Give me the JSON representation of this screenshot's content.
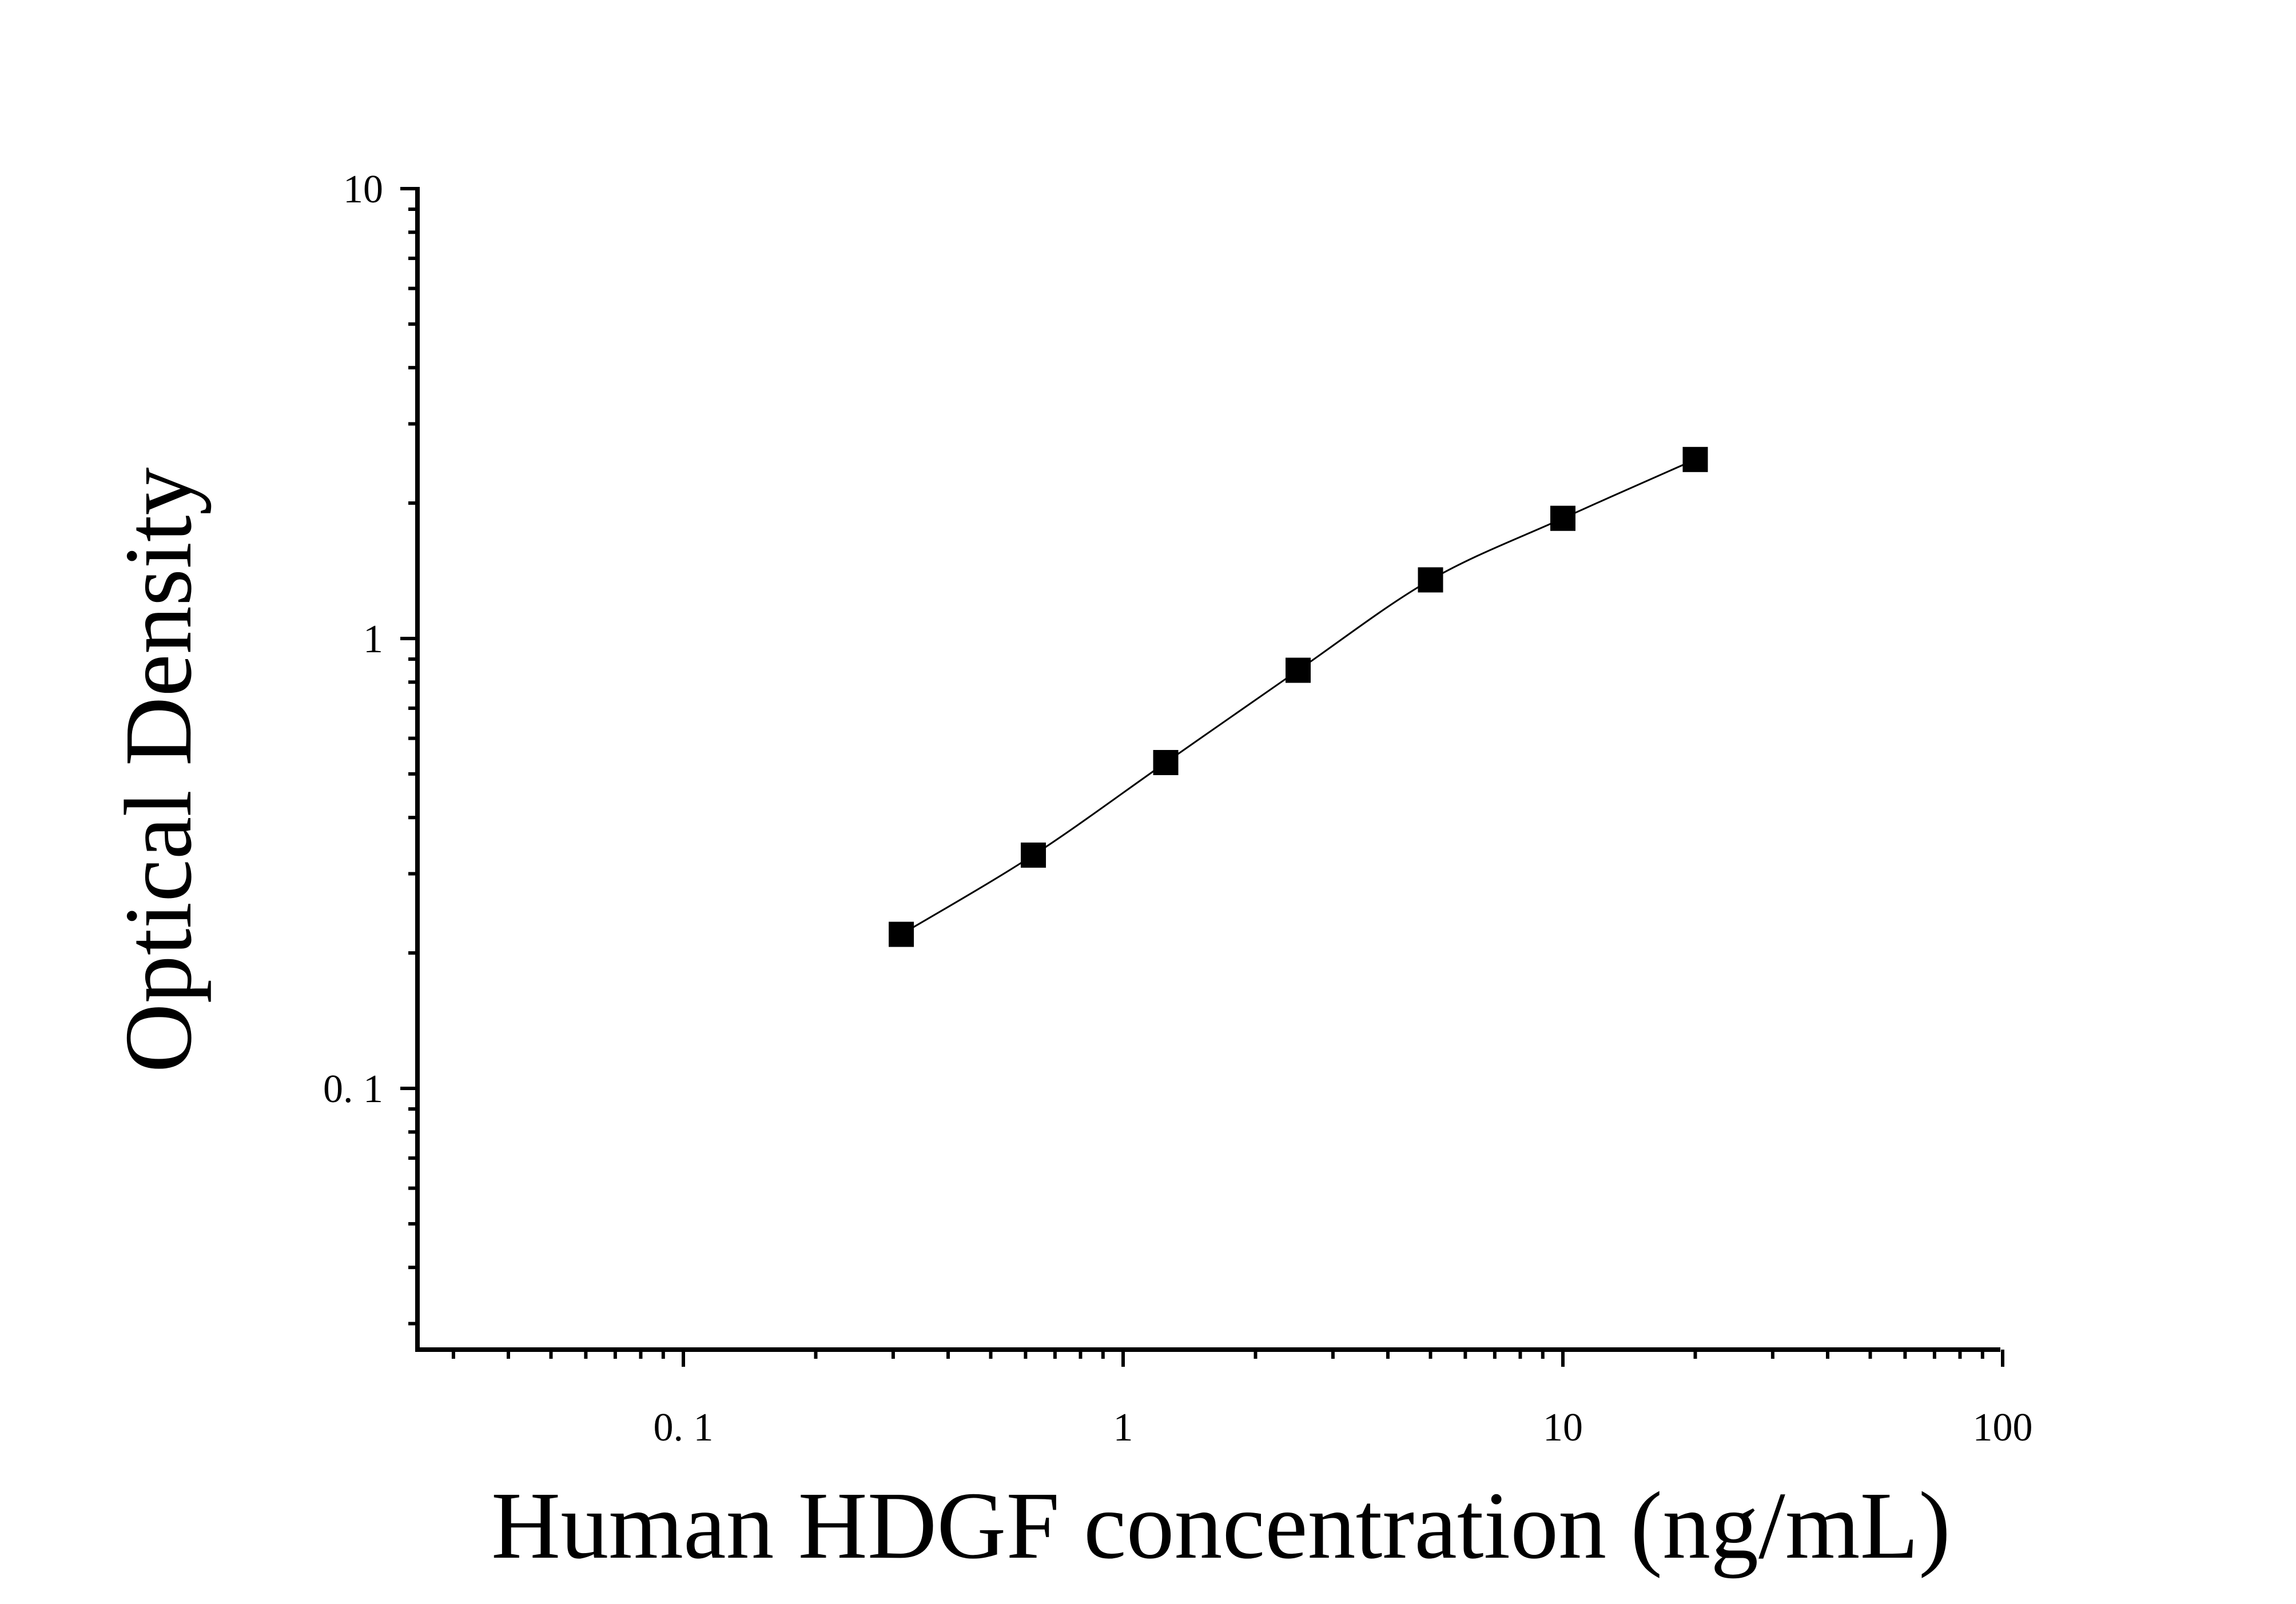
{
  "chart_data": {
    "type": "scatter",
    "xlabel": "Human HDGF concentration (ng/mL)",
    "ylabel": "Optical Density",
    "x_scale": "log",
    "y_scale": "log",
    "xlim": [
      0.025,
      100
    ],
    "ylim": [
      0.025,
      10
    ],
    "x_ticks": [
      0.1,
      1,
      10,
      100
    ],
    "x_tick_labels": [
      "0. 1",
      "1",
      "10",
      "100"
    ],
    "y_ticks": [
      0.1,
      1,
      10
    ],
    "y_tick_labels": [
      "0. 1",
      "1",
      "10"
    ],
    "grid": false,
    "series": [
      {
        "marker": "square",
        "color": "#000000",
        "fit_line": true,
        "points": [
          {
            "x": 0.313,
            "y": 0.22
          },
          {
            "x": 0.625,
            "y": 0.33
          },
          {
            "x": 1.25,
            "y": 0.53
          },
          {
            "x": 2.5,
            "y": 0.85
          },
          {
            "x": 5,
            "y": 1.35
          },
          {
            "x": 10,
            "y": 1.85
          },
          {
            "x": 20,
            "y": 2.5
          }
        ]
      }
    ]
  }
}
